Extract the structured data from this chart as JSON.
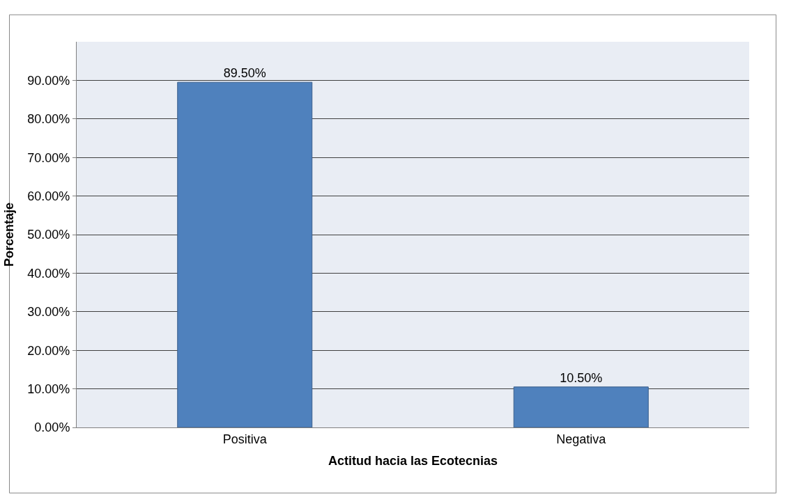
{
  "chart_data": {
    "type": "bar",
    "xlabel": "Actitud hacia las Ecotecnias",
    "ylabel": "Porcentaje",
    "categories": [
      "Positiva",
      "Negativa"
    ],
    "values": [
      89.5,
      10.5
    ],
    "value_labels": [
      "89.50%",
      "10.50%"
    ],
    "color": "#4f81bd",
    "ylim": [
      0,
      100
    ],
    "yticks": [
      {
        "value": 0,
        "label": "0.00%"
      },
      {
        "value": 10,
        "label": "10.00%"
      },
      {
        "value": 20,
        "label": "20.00%"
      },
      {
        "value": 30,
        "label": "30.00%"
      },
      {
        "value": 40,
        "label": "40.00%"
      },
      {
        "value": 50,
        "label": "50.00%"
      },
      {
        "value": 60,
        "label": "60.00%"
      },
      {
        "value": 70,
        "label": "70.00%"
      },
      {
        "value": 80,
        "label": "80.00%"
      },
      {
        "value": 90,
        "label": "90.00%"
      }
    ],
    "grid": "y"
  }
}
